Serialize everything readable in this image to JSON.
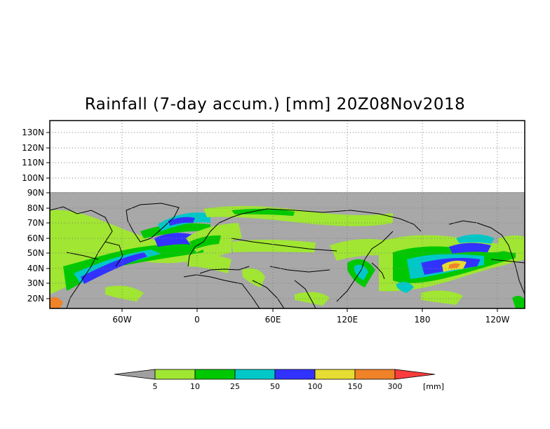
{
  "title": "Rainfall (7-day accum.) [mm] 20Z08Nov2018",
  "lat_labels": [
    "130N",
    "120N",
    "110N",
    "100N",
    "90N",
    "80N",
    "70N",
    "60N",
    "50N",
    "40N",
    "30N",
    "20N"
  ],
  "lon_labels": [
    "60W",
    "0",
    "60E",
    "120E",
    "180",
    "120W"
  ],
  "colorbar": {
    "thresholds": [
      "5",
      "10",
      "25",
      "50",
      "100",
      "150",
      "300"
    ],
    "unit": "[mm]",
    "colors": [
      "#a0a0a0",
      "#a0e632",
      "#00c800",
      "#00c8c8",
      "#3232ff",
      "#e6dc32",
      "#f08228",
      "#fa3c3c"
    ]
  },
  "map_colors": {
    "no_data": "#a8a8a8",
    "dry": "#a8a8a8",
    "grid": "#7f7f7f",
    "coast": "#000000"
  }
}
